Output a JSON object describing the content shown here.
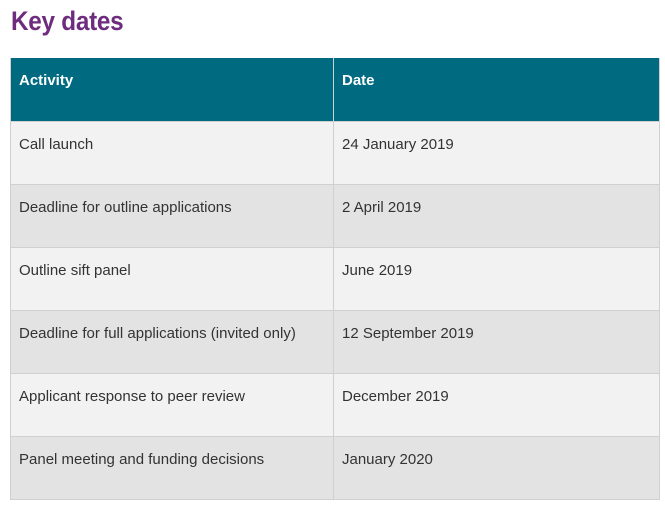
{
  "page": {
    "title": "Key dates"
  },
  "table": {
    "headers": {
      "activity": "Activity",
      "date": "Date"
    },
    "rows": [
      {
        "activity": "Call launch",
        "date": "24 January 2019"
      },
      {
        "activity": "Deadline for outline applications",
        "date": "2 April 2019"
      },
      {
        "activity": "Outline sift panel",
        "date": "June 2019"
      },
      {
        "activity": "Deadline for full applications (invited only)",
        "date": "12 September 2019"
      },
      {
        "activity": "Applicant response to peer review",
        "date": "December 2019"
      },
      {
        "activity": "Panel meeting and funding decisions",
        "date": "January 2020"
      }
    ]
  },
  "colors": {
    "title": "#6e2c7e",
    "header_bg": "#006a80",
    "row_light": "#f2f2f2",
    "row_dark": "#e3e3e3"
  }
}
